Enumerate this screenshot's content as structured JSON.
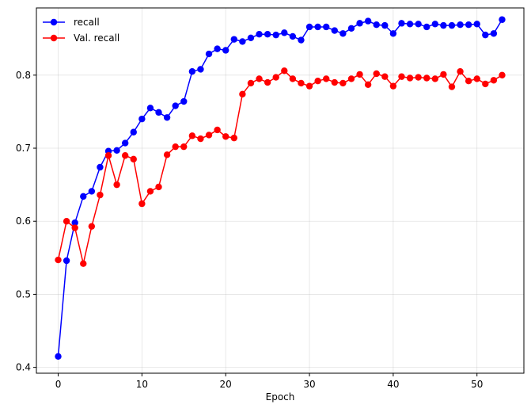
{
  "chart_data": {
    "type": "line",
    "title": "",
    "xlabel": "Epoch",
    "ylabel": "",
    "xlim": [
      -2.6,
      55.6
    ],
    "ylim": [
      0.392,
      0.892
    ],
    "xticks": [
      0,
      10,
      20,
      30,
      40,
      50
    ],
    "yticks": [
      0.4,
      0.5,
      0.6,
      0.7,
      0.8
    ],
    "xtick_labels": [
      "0",
      "10",
      "20",
      "30",
      "40",
      "50"
    ],
    "ytick_labels": [
      "0.4",
      "0.5",
      "0.6",
      "0.7",
      "0.8"
    ],
    "grid": true,
    "legend_position": "upper-left",
    "series": [
      {
        "name": "recall",
        "color": "#0000ff",
        "marker": "circle",
        "x": [
          0,
          1,
          2,
          3,
          4,
          5,
          6,
          7,
          8,
          9,
          10,
          11,
          12,
          13,
          14,
          15,
          16,
          17,
          18,
          19,
          20,
          21,
          22,
          23,
          24,
          25,
          26,
          27,
          28,
          29,
          30,
          31,
          32,
          33,
          34,
          35,
          36,
          37,
          38,
          39,
          40,
          41,
          42,
          43,
          44,
          45,
          46,
          47,
          48,
          49,
          50,
          51,
          52,
          53
        ],
        "values": [
          0.415,
          0.546,
          0.598,
          0.634,
          0.641,
          0.674,
          0.696,
          0.697,
          0.707,
          0.722,
          0.74,
          0.755,
          0.749,
          0.742,
          0.758,
          0.764,
          0.805,
          0.808,
          0.829,
          0.836,
          0.834,
          0.849,
          0.846,
          0.851,
          0.856,
          0.856,
          0.855,
          0.858,
          0.853,
          0.848,
          0.866,
          0.866,
          0.866,
          0.861,
          0.857,
          0.864,
          0.871,
          0.874,
          0.869,
          0.868,
          0.857,
          0.871,
          0.87,
          0.87,
          0.866,
          0.87,
          0.868,
          0.868,
          0.869,
          0.869,
          0.87,
          0.855,
          0.857,
          0.876
        ]
      },
      {
        "name": "Val. recall",
        "color": "#ff0000",
        "marker": "circle",
        "x": [
          0,
          1,
          2,
          3,
          4,
          5,
          6,
          7,
          8,
          9,
          10,
          11,
          12,
          13,
          14,
          15,
          16,
          17,
          18,
          19,
          20,
          21,
          22,
          23,
          24,
          25,
          26,
          27,
          28,
          29,
          30,
          31,
          32,
          33,
          34,
          35,
          36,
          37,
          38,
          39,
          40,
          41,
          42,
          43,
          44,
          45,
          46,
          47,
          48,
          49,
          50,
          51,
          52,
          53
        ],
        "values": [
          0.547,
          0.6,
          0.591,
          0.542,
          0.593,
          0.636,
          0.69,
          0.65,
          0.69,
          0.685,
          0.624,
          0.641,
          0.647,
          0.691,
          0.702,
          0.702,
          0.717,
          0.713,
          0.718,
          0.725,
          0.716,
          0.714,
          0.774,
          0.789,
          0.795,
          0.79,
          0.797,
          0.806,
          0.795,
          0.789,
          0.785,
          0.792,
          0.795,
          0.79,
          0.789,
          0.795,
          0.801,
          0.787,
          0.802,
          0.798,
          0.785,
          0.798,
          0.796,
          0.797,
          0.796,
          0.795,
          0.801,
          0.784,
          0.805,
          0.792,
          0.795,
          0.788,
          0.793,
          0.8
        ]
      }
    ]
  }
}
